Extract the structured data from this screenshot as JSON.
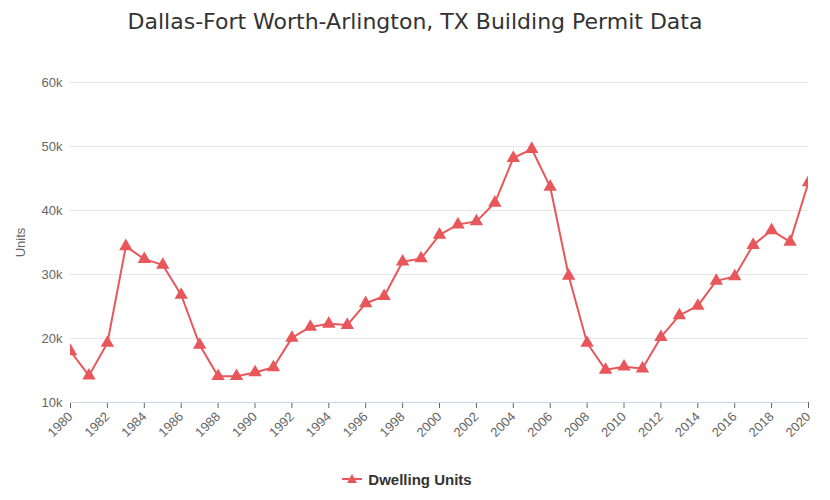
{
  "chart_data": {
    "type": "line",
    "title": "Dallas-Fort Worth-Arlington, TX Building Permit Data",
    "y_label": "Units",
    "x": [
      1980,
      1981,
      1982,
      1983,
      1984,
      1985,
      1986,
      1987,
      1988,
      1989,
      1990,
      1991,
      1992,
      1993,
      1994,
      1995,
      1996,
      1997,
      1998,
      1999,
      2000,
      2001,
      2002,
      2003,
      2004,
      2005,
      2006,
      2007,
      2008,
      2009,
      2010,
      2011,
      2012,
      2013,
      2014,
      2015,
      2016,
      2017,
      2018,
      2019,
      2020
    ],
    "series": [
      {
        "name": "Dwelling Units",
        "color": "#e8575b",
        "marker": "triangle",
        "values": [
          18000,
          14200,
          19300,
          34400,
          32400,
          31500,
          26800,
          19000,
          14100,
          14100,
          14700,
          15500,
          20100,
          21800,
          22300,
          22100,
          25500,
          26600,
          32000,
          32500,
          36200,
          37800,
          38300,
          41200,
          48200,
          49600,
          43700,
          29800,
          19300,
          15100,
          15600,
          15300,
          20200,
          23600,
          25100,
          29000,
          29700,
          34600,
          36900,
          35100,
          44400
        ]
      }
    ],
    "xlim": [
      1980,
      2020
    ],
    "xticks": [
      1980,
      1982,
      1984,
      1986,
      1988,
      1990,
      1992,
      1994,
      1996,
      1998,
      2000,
      2002,
      2004,
      2006,
      2008,
      2010,
      2012,
      2014,
      2016,
      2018,
      2020
    ],
    "ylim": [
      10000,
      60000
    ],
    "yticks": [
      {
        "value": 10000,
        "label": "10k"
      },
      {
        "value": 20000,
        "label": "20k"
      },
      {
        "value": 30000,
        "label": "30k"
      },
      {
        "value": 40000,
        "label": "40k"
      },
      {
        "value": 50000,
        "label": "50k"
      },
      {
        "value": 60000,
        "label": "60k"
      }
    ],
    "grid": true,
    "legend": "bottom"
  }
}
